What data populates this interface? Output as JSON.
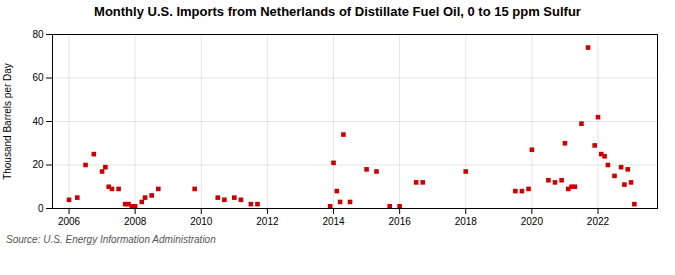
{
  "chart_data": {
    "type": "scatter",
    "title": "Monthly U.S. Imports from Netherlands of Distillate Fuel Oil, 0 to 15 ppm Sulfur",
    "ylabel": "Thousand Barrels per Day",
    "source": "Source: U.S. Energy Information Administration",
    "color": "#cc0000",
    "marker": "square",
    "grid": true,
    "ylim": [
      0,
      80
    ],
    "yticks": [
      0,
      20,
      40,
      60,
      80
    ],
    "xlim": [
      2005.5,
      2023.8
    ],
    "xticks": [
      2006,
      2008,
      2010,
      2012,
      2014,
      2016,
      2018,
      2020,
      2022
    ],
    "x": [
      2006.0,
      2006.25,
      2006.5,
      2006.75,
      2007.0,
      2007.1,
      2007.2,
      2007.3,
      2007.5,
      2007.7,
      2007.8,
      2007.9,
      2008.0,
      2008.2,
      2008.3,
      2008.5,
      2008.7,
      2009.8,
      2010.5,
      2010.7,
      2011.0,
      2011.2,
      2011.5,
      2011.7,
      2013.9,
      2014.0,
      2014.1,
      2014.2,
      2014.3,
      2014.5,
      2015.0,
      2015.3,
      2015.7,
      2016.0,
      2016.5,
      2016.7,
      2018.0,
      2019.5,
      2019.7,
      2019.9,
      2020.0,
      2020.5,
      2020.7,
      2020.9,
      2021.0,
      2021.1,
      2021.2,
      2021.3,
      2021.5,
      2021.7,
      2021.9,
      2022.0,
      2022.1,
      2022.2,
      2022.3,
      2022.5,
      2022.7,
      2022.8,
      2022.9,
      2023.0,
      2023.1
    ],
    "values": [
      4,
      5,
      20,
      25,
      17,
      19,
      10,
      9,
      9,
      2,
      2,
      1,
      1,
      3,
      5,
      6,
      9,
      9,
      5,
      4,
      5,
      4,
      2,
      2,
      1,
      21,
      8,
      3,
      34,
      3,
      18,
      17,
      1,
      1,
      12,
      12,
      17,
      8,
      8,
      9,
      27,
      13,
      12,
      13,
      30,
      9,
      10,
      10,
      39,
      74,
      29,
      42,
      25,
      24,
      20,
      15,
      19,
      11,
      18,
      12,
      2
    ]
  }
}
